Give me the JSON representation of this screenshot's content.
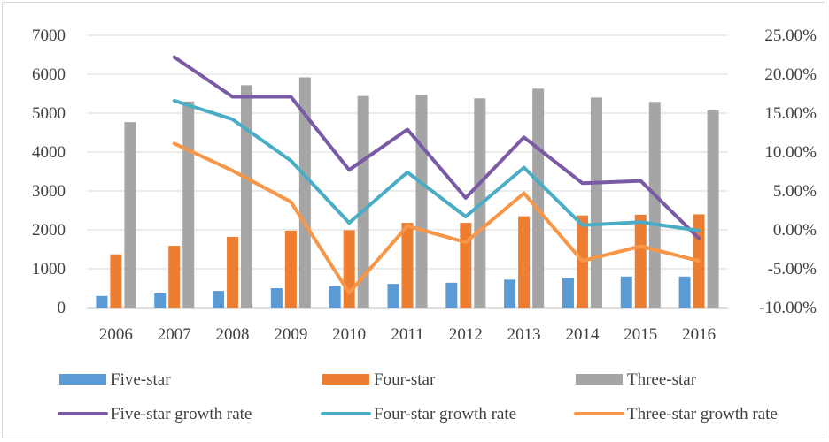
{
  "chart_data": {
    "type": "bar",
    "categories": [
      "2006",
      "2007",
      "2008",
      "2009",
      "2010",
      "2011",
      "2012",
      "2013",
      "2014",
      "2015",
      "2016"
    ],
    "series": [
      {
        "name": "Five-star",
        "kind": "bar",
        "axis": "left",
        "color": "#5b9bd5",
        "values": [
          300,
          370,
          430,
          500,
          550,
          610,
          640,
          720,
          760,
          800,
          800
        ]
      },
      {
        "name": "Four-star",
        "kind": "bar",
        "axis": "left",
        "color": "#ed7d31",
        "values": [
          1370,
          1590,
          1820,
          1980,
          1990,
          2180,
          2180,
          2350,
          2370,
          2390,
          2400
        ]
      },
      {
        "name": "Three-star",
        "kind": "bar",
        "axis": "left",
        "color": "#a5a5a5",
        "values": [
          4770,
          5300,
          5720,
          5920,
          5440,
          5470,
          5380,
          5630,
          5400,
          5290,
          5070
        ]
      },
      {
        "name": "Five-star growth rate",
        "kind": "line",
        "axis": "right",
        "color": "#7a5aa5",
        "values": [
          null,
          0.222,
          0.171,
          0.171,
          0.077,
          0.129,
          0.041,
          0.119,
          0.06,
          0.063,
          -0.011
        ]
      },
      {
        "name": "Four-star growth rate",
        "kind": "line",
        "axis": "right",
        "color": "#4bacc6",
        "values": [
          null,
          0.166,
          0.142,
          0.089,
          0.009,
          0.074,
          0.017,
          0.08,
          0.006,
          0.01,
          -0.001
        ]
      },
      {
        "name": "Three-star growth rate",
        "kind": "line",
        "axis": "right",
        "color": "#f79646",
        "values": [
          null,
          0.111,
          0.076,
          0.036,
          -0.081,
          0.005,
          -0.016,
          0.047,
          -0.04,
          -0.021,
          -0.04
        ]
      }
    ],
    "y_left": {
      "min": 0,
      "max": 7000,
      "step": 1000,
      "tick_labels": [
        "0",
        "1000",
        "2000",
        "3000",
        "4000",
        "5000",
        "6000",
        "7000"
      ]
    },
    "y_right": {
      "min": -0.1,
      "max": 0.25,
      "step": 0.05,
      "tick_labels": [
        "-10.00%",
        "-5.00%",
        "0.00%",
        "5.00%",
        "10.00%",
        "15.00%",
        "20.00%",
        "25.00%"
      ]
    },
    "grid": true,
    "legend_position": "bottom",
    "title": "",
    "xlabel": "",
    "ylabel": ""
  }
}
